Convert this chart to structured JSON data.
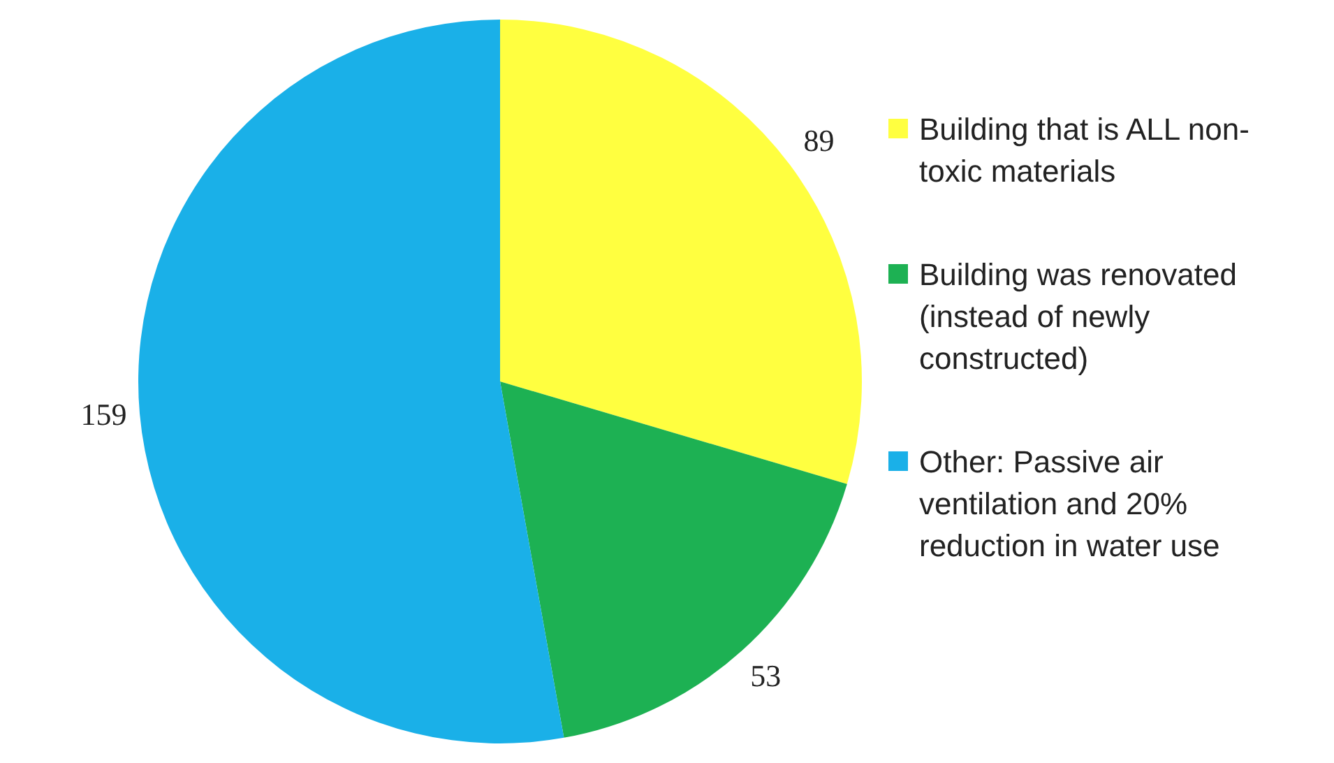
{
  "chart_data": {
    "type": "pie",
    "categories": [
      "Building that is ALL non-toxic materials",
      "Building was renovated (instead of newly constructed)",
      "Other: Passive air ventilation and 20% reduction in water use"
    ],
    "values": [
      89,
      53,
      159
    ],
    "colors": [
      "#ffff40",
      "#1db153",
      "#1ab0e8"
    ],
    "data_labels": true,
    "legend": "right"
  }
}
